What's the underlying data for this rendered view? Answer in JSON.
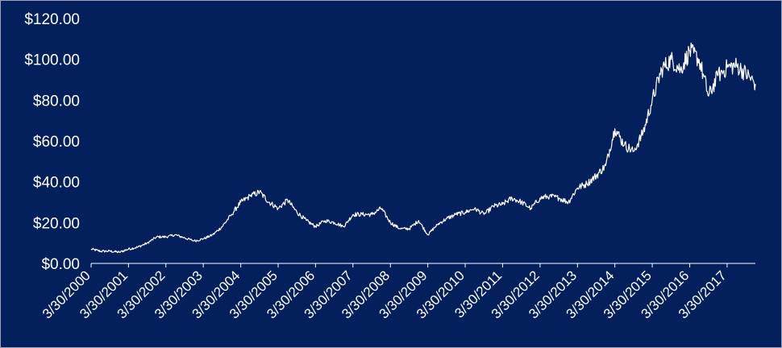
{
  "chart_data": {
    "type": "line",
    "title": "",
    "xlabel": "",
    "ylabel": "",
    "x_ticks": [
      "3/30/2000",
      "3/30/2001",
      "3/30/2002",
      "3/30/2003",
      "3/30/2004",
      "3/30/2005",
      "3/30/2006",
      "3/30/2007",
      "3/30/2008",
      "3/30/2009",
      "3/30/2010",
      "3/30/2011",
      "3/30/2012",
      "3/30/2013",
      "3/30/2014",
      "3/30/2015",
      "3/30/2016",
      "3/30/2017"
    ],
    "y_ticks": [
      "$0.00",
      "$20.00",
      "$40.00",
      "$60.00",
      "$80.00",
      "$100.00",
      "$120.00"
    ],
    "ylim": [
      0,
      120
    ],
    "xlim": [
      "2000-03-30",
      "2017-12-31"
    ],
    "grid": false,
    "legend": "none",
    "colors": {
      "background": "#03205C",
      "line": "#FFFFFF",
      "text": "#FFFFFF",
      "axis": "#FFFFFF"
    },
    "series": [
      {
        "x": [
          "2000-03-30",
          "2000-06-30",
          "2000-09-30",
          "2000-12-31",
          "2001-03-30",
          "2001-06-30",
          "2001-09-30",
          "2001-12-31",
          "2002-03-30",
          "2002-06-30",
          "2002-09-30",
          "2002-12-31",
          "2003-03-30",
          "2003-06-30",
          "2003-09-30",
          "2003-12-31",
          "2004-03-30",
          "2004-06-30",
          "2004-09-30",
          "2004-12-31",
          "2005-03-30",
          "2005-06-30",
          "2005-09-30",
          "2005-12-31",
          "2006-03-30",
          "2006-06-30",
          "2006-09-30",
          "2006-12-31",
          "2007-03-30",
          "2007-06-30",
          "2007-09-30",
          "2007-12-31",
          "2008-03-30",
          "2008-06-30",
          "2008-09-30",
          "2008-12-31",
          "2009-03-30",
          "2009-06-30",
          "2009-09-30",
          "2009-12-31",
          "2010-03-30",
          "2010-06-30",
          "2010-09-30",
          "2010-12-31",
          "2011-03-30",
          "2011-06-30",
          "2011-09-30",
          "2011-12-31",
          "2012-03-30",
          "2012-06-30",
          "2012-09-30",
          "2012-12-31",
          "2013-03-30",
          "2013-06-30",
          "2013-09-30",
          "2013-12-31",
          "2014-03-30",
          "2014-06-30",
          "2014-09-30",
          "2014-12-31",
          "2015-03-30",
          "2015-06-30",
          "2015-09-30",
          "2015-12-31",
          "2016-03-30",
          "2016-06-30",
          "2016-09-30",
          "2016-12-31",
          "2017-03-30",
          "2017-06-30",
          "2017-09-30",
          "2017-12-31"
        ],
        "values": [
          7,
          6,
          6,
          5.5,
          7,
          8,
          10,
          13,
          13,
          14,
          12.5,
          11,
          12,
          14,
          18,
          24,
          30,
          33,
          35,
          30,
          27,
          31,
          25,
          21,
          18,
          21,
          20,
          18,
          24,
          24,
          24,
          27,
          20,
          17,
          17,
          21,
          14,
          19,
          22,
          24,
          25,
          27,
          24,
          28,
          29,
          32,
          30,
          27,
          32,
          33,
          32,
          30,
          37,
          39,
          43,
          48,
          66,
          58,
          55,
          64,
          80,
          95,
          100,
          95,
          104,
          100,
          82,
          92,
          96,
          97,
          93,
          88
        ]
      }
    ]
  }
}
